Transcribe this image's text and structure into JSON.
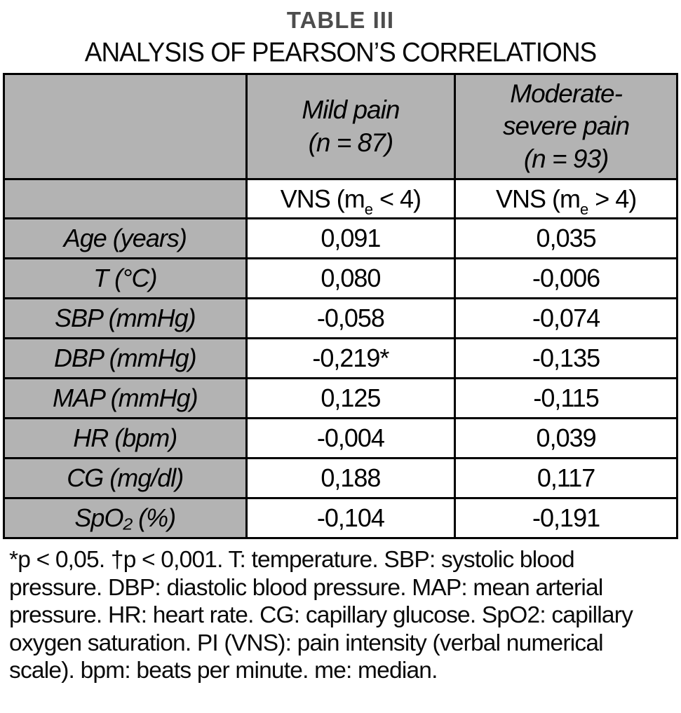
{
  "title": "TABLE III",
  "subtitle": "ANALYSIS OF PEARSON’S CORRELATIONS",
  "table": {
    "mild_header": {
      "lines": [
        "Mild pain",
        "(n = 87)"
      ]
    },
    "modsev_header": {
      "lines": [
        "Moderate-",
        "severe pain",
        "(n = 93)"
      ]
    },
    "vns_mild": {
      "pre": "VNS (m",
      "sub": "e",
      "post": " < 4)"
    },
    "vns_modsev": {
      "pre": "VNS (m",
      "sub": "e",
      "post": " > 4)"
    },
    "rows": [
      {
        "label": "Age (years)",
        "mild": "0,091",
        "modsev": "0,035"
      },
      {
        "label": "T (°C)",
        "mild": "0,080",
        "modsev": "-0,006"
      },
      {
        "label": "SBP (mmHg)",
        "mild": "-0,058",
        "modsev": "-0,074"
      },
      {
        "label": "DBP (mmHg)",
        "mild": "-0,219*",
        "modsev": "-0,135"
      },
      {
        "label": "MAP (mmHg)",
        "mild": "0,125",
        "modsev": "-0,115"
      },
      {
        "label": "HR (bpm)",
        "mild": "-0,004",
        "modsev": "0,039"
      },
      {
        "label": "CG (mg/dl)",
        "mild": "0,188",
        "modsev": "0,117"
      },
      {
        "label": "SpO₂ (%)",
        "mild": "-0,104",
        "modsev": "-0,191"
      }
    ]
  },
  "footnote": "*p < 0,05. †p < 0,001. T: temperature. SBP: systolic blood pressure. DBP: diastolic blood pressure. MAP: mean arterial pressure. HR: heart rate. CG: capillary glucose. SpO2: capillary oxygen saturation. PI (VNS): pain intensity (verbal numerical scale). bpm: beats per minute. me: median.",
  "colors": {
    "header_gray": "#b3b3b3",
    "title_gray": "#4d4d4d",
    "border": "#000000",
    "background": "#ffffff"
  }
}
